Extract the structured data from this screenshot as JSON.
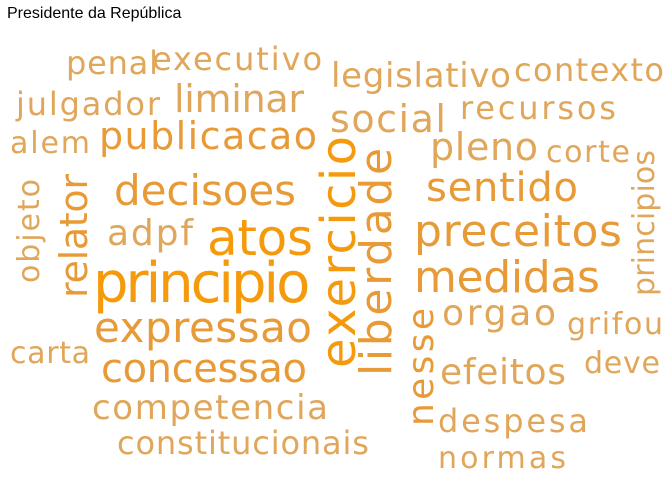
{
  "title": "Presidente da República",
  "colors": {
    "light": "#E0A65A",
    "medium": "#E89A37",
    "strong": "#F59A0C"
  },
  "words": [
    {
      "text": "exercicio",
      "tone": "strong",
      "rotated": true
    },
    {
      "text": "liberdade",
      "tone": "medium",
      "rotated": true
    },
    {
      "text": "atos",
      "tone": "strong",
      "rotated": false
    },
    {
      "text": "principio",
      "tone": "strong",
      "rotated": false
    },
    {
      "text": "preceitos",
      "tone": "medium",
      "rotated": false
    },
    {
      "text": "medidas",
      "tone": "medium",
      "rotated": false
    },
    {
      "text": "expressao",
      "tone": "medium",
      "rotated": false
    },
    {
      "text": "decisoes",
      "tone": "medium",
      "rotated": false
    },
    {
      "text": "publicacao",
      "tone": "medium",
      "rotated": false
    },
    {
      "text": "sentido",
      "tone": "medium",
      "rotated": false
    },
    {
      "text": "concessao",
      "tone": "medium",
      "rotated": false
    },
    {
      "text": "relator",
      "tone": "medium",
      "rotated": true
    },
    {
      "text": "nesse",
      "tone": "medium",
      "rotated": true
    },
    {
      "text": "liminar",
      "tone": "light",
      "rotated": false
    },
    {
      "text": "social",
      "tone": "light",
      "rotated": false
    },
    {
      "text": "adpf",
      "tone": "light",
      "rotated": false
    },
    {
      "text": "pleno",
      "tone": "light",
      "rotated": false
    },
    {
      "text": "orgao",
      "tone": "light",
      "rotated": false
    },
    {
      "text": "efeitos",
      "tone": "light",
      "rotated": false
    },
    {
      "text": "competencia",
      "tone": "light",
      "rotated": false
    },
    {
      "text": "executivo",
      "tone": "light",
      "rotated": false
    },
    {
      "text": "legislativo",
      "tone": "light",
      "rotated": false
    },
    {
      "text": "recursos",
      "tone": "light",
      "rotated": false
    },
    {
      "text": "contexto",
      "tone": "light",
      "rotated": false
    },
    {
      "text": "julgador",
      "tone": "light",
      "rotated": false
    },
    {
      "text": "penal",
      "tone": "light",
      "rotated": false
    },
    {
      "text": "constitucionais",
      "tone": "light",
      "rotated": false
    },
    {
      "text": "despesa",
      "tone": "light",
      "rotated": false
    },
    {
      "text": "normas",
      "tone": "light",
      "rotated": false
    },
    {
      "text": "grifou",
      "tone": "light",
      "rotated": false
    },
    {
      "text": "deve",
      "tone": "light",
      "rotated": false
    },
    {
      "text": "corte",
      "tone": "light",
      "rotated": false
    },
    {
      "text": "alem",
      "tone": "light",
      "rotated": false
    },
    {
      "text": "carta",
      "tone": "light",
      "rotated": false
    },
    {
      "text": "objeto",
      "tone": "light",
      "rotated": true
    },
    {
      "text": "principios",
      "tone": "light",
      "rotated": true
    }
  ]
}
